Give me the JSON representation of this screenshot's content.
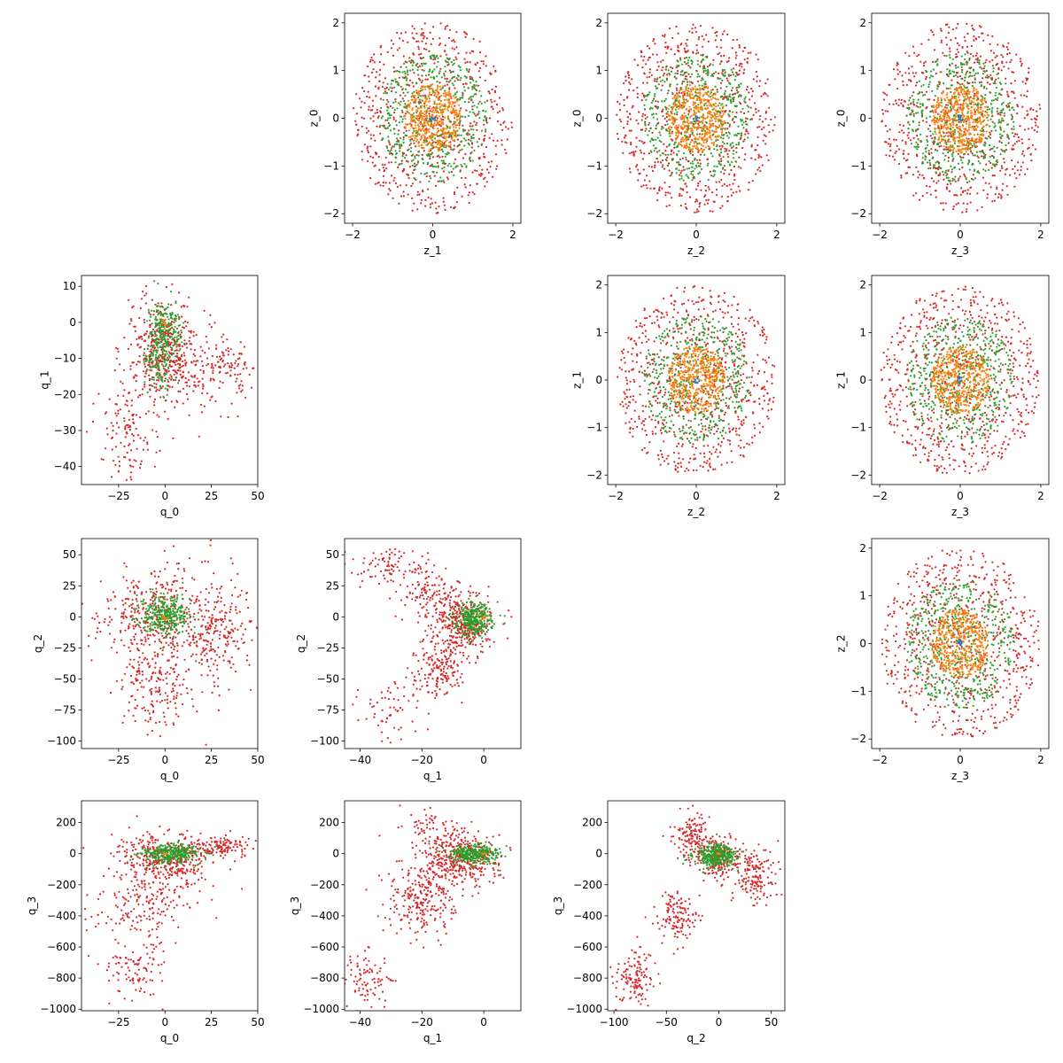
{
  "colors": {
    "level_1": "#1f77b4",
    "level_2": "#ff7f0e",
    "level_3": "#2ca02c",
    "level_4": "#d62728"
  },
  "chart_data": [
    {
      "id": "z0_z1",
      "type": "scatter",
      "xlabel": "z_1",
      "ylabel": "z_0",
      "xlim": [
        -2.2,
        2.2
      ],
      "ylim": [
        -2.2,
        2.2
      ],
      "xticks": [
        -2,
        0,
        2
      ],
      "yticks": [
        -2,
        -1,
        0,
        1,
        2
      ],
      "series": [
        {
          "color": "level_4",
          "dist": "ring",
          "r": [
            0.0,
            2.0
          ],
          "n": 700
        },
        {
          "color": "level_3",
          "dist": "ring",
          "r": [
            0.0,
            1.35
          ],
          "n": 500
        },
        {
          "color": "level_2",
          "dist": "ring",
          "r": [
            0.0,
            0.72
          ],
          "n": 450
        },
        {
          "color": "level_1",
          "dist": "ring",
          "r": [
            0.0,
            0.08
          ],
          "n": 10
        }
      ]
    },
    {
      "id": "z0_z2",
      "type": "scatter",
      "xlabel": "z_2",
      "ylabel": "z_0",
      "xlim": [
        -2.2,
        2.2
      ],
      "ylim": [
        -2.2,
        2.2
      ],
      "xticks": [
        -2,
        0,
        2
      ],
      "yticks": [
        -2,
        -1,
        0,
        1,
        2
      ],
      "series": [
        {
          "color": "level_4",
          "dist": "ring",
          "r": [
            0.0,
            2.0
          ],
          "n": 700
        },
        {
          "color": "level_3",
          "dist": "ring",
          "r": [
            0.0,
            1.35
          ],
          "n": 500
        },
        {
          "color": "level_2",
          "dist": "ring",
          "r": [
            0.0,
            0.72
          ],
          "n": 450
        },
        {
          "color": "level_1",
          "dist": "ring",
          "r": [
            0.0,
            0.08
          ],
          "n": 10
        }
      ]
    },
    {
      "id": "z0_z3",
      "type": "scatter",
      "xlabel": "z_3",
      "ylabel": "z_0",
      "xlim": [
        -2.2,
        2.2
      ],
      "ylim": [
        -2.2,
        2.2
      ],
      "xticks": [
        -2,
        0,
        2
      ],
      "yticks": [
        -2,
        -1,
        0,
        1,
        2
      ],
      "series": [
        {
          "color": "level_4",
          "dist": "ring",
          "r": [
            0.0,
            2.0
          ],
          "n": 700
        },
        {
          "color": "level_3",
          "dist": "ring",
          "r": [
            0.0,
            1.35
          ],
          "n": 500
        },
        {
          "color": "level_2",
          "dist": "ring",
          "r": [
            0.0,
            0.72
          ],
          "n": 450
        },
        {
          "color": "level_1",
          "dist": "ring",
          "r": [
            0.0,
            0.08
          ],
          "n": 10
        }
      ]
    },
    {
      "id": "z1_z2",
      "type": "scatter",
      "xlabel": "z_2",
      "ylabel": "z_1",
      "xlim": [
        -2.2,
        2.2
      ],
      "ylim": [
        -2.2,
        2.2
      ],
      "xticks": [
        -2,
        0,
        2
      ],
      "yticks": [
        -2,
        -1,
        0,
        1,
        2
      ],
      "series": [
        {
          "color": "level_4",
          "dist": "ring",
          "r": [
            0.0,
            2.0
          ],
          "n": 700
        },
        {
          "color": "level_3",
          "dist": "ring",
          "r": [
            0.0,
            1.35
          ],
          "n": 500
        },
        {
          "color": "level_2",
          "dist": "ring",
          "r": [
            0.0,
            0.72
          ],
          "n": 450
        },
        {
          "color": "level_1",
          "dist": "ring",
          "r": [
            0.0,
            0.08
          ],
          "n": 10
        }
      ]
    },
    {
      "id": "z1_z3",
      "type": "scatter",
      "xlabel": "z_3",
      "ylabel": "z_1",
      "xlim": [
        -2.2,
        2.2
      ],
      "ylim": [
        -2.2,
        2.2
      ],
      "xticks": [
        -2,
        0,
        2
      ],
      "yticks": [
        -2,
        -1,
        0,
        1,
        2
      ],
      "series": [
        {
          "color": "level_4",
          "dist": "ring",
          "r": [
            0.0,
            2.0
          ],
          "n": 700
        },
        {
          "color": "level_3",
          "dist": "ring",
          "r": [
            0.0,
            1.35
          ],
          "n": 500
        },
        {
          "color": "level_2",
          "dist": "ring",
          "r": [
            0.0,
            0.72
          ],
          "n": 450
        },
        {
          "color": "level_1",
          "dist": "ring",
          "r": [
            0.0,
            0.08
          ],
          "n": 10
        }
      ]
    },
    {
      "id": "z2_z3",
      "type": "scatter",
      "xlabel": "z_3",
      "ylabel": "z_2",
      "xlim": [
        -2.2,
        2.2
      ],
      "ylim": [
        -2.2,
        2.2
      ],
      "xticks": [
        -2,
        0,
        2
      ],
      "yticks": [
        -2,
        -1,
        0,
        1,
        2
      ],
      "series": [
        {
          "color": "level_4",
          "dist": "ring",
          "r": [
            0.0,
            2.0
          ],
          "n": 700
        },
        {
          "color": "level_3",
          "dist": "ring",
          "r": [
            0.0,
            1.35
          ],
          "n": 500
        },
        {
          "color": "level_2",
          "dist": "ring",
          "r": [
            0.0,
            0.72
          ],
          "n": 450
        },
        {
          "color": "level_1",
          "dist": "ring",
          "r": [
            0.0,
            0.08
          ],
          "n": 10
        }
      ]
    },
    {
      "id": "q1_q0",
      "type": "scatter",
      "xlabel": "q_0",
      "ylabel": "q_1",
      "xlim": [
        -45,
        50
      ],
      "ylim": [
        -45,
        13
      ],
      "xticks": [
        -25,
        0,
        25,
        50
      ],
      "yticks": [
        -40,
        -30,
        -20,
        -10,
        0,
        10
      ],
      "series": [
        {
          "color": "level_4",
          "dist": "clusters",
          "n": 750,
          "clusters": [
            {
              "cx": 0,
              "cy": -6,
              "sx": 9,
              "sy": 6,
              "w": 0.45
            },
            {
              "cx": -20,
              "cy": -28,
              "sx": 8,
              "sy": 8,
              "w": 0.2
            },
            {
              "cx": 35,
              "cy": -12,
              "sx": 7,
              "sy": 4,
              "w": 0.12
            },
            {
              "cx": 10,
              "cy": -15,
              "sx": 14,
              "sy": 6,
              "w": 0.23
            }
          ]
        },
        {
          "color": "level_3",
          "dist": "clusters",
          "n": 320,
          "clusters": [
            {
              "cx": 0,
              "cy": -2,
              "sx": 5,
              "sy": 4,
              "w": 0.7
            },
            {
              "cx": -3,
              "cy": -12,
              "sx": 4,
              "sy": 4,
              "w": 0.3
            }
          ]
        },
        {
          "color": "level_2",
          "dist": "clusters",
          "n": 8,
          "clusters": [
            {
              "cx": 0,
              "cy": 0,
              "sx": 1,
              "sy": 1,
              "w": 1
            }
          ]
        }
      ]
    },
    {
      "id": "q2_q0",
      "type": "scatter",
      "xlabel": "q_0",
      "ylabel": "q_2",
      "xlim": [
        -45,
        50
      ],
      "ylim": [
        -106,
        63
      ],
      "xticks": [
        -25,
        0,
        25,
        50
      ],
      "yticks": [
        -100,
        -75,
        -50,
        -25,
        0,
        25,
        50
      ],
      "series": [
        {
          "color": "level_4",
          "dist": "clusters",
          "n": 800,
          "clusters": [
            {
              "cx": 0,
              "cy": 0,
              "sx": 18,
              "sy": 22,
              "w": 0.6
            },
            {
              "cx": -5,
              "cy": -60,
              "sx": 10,
              "sy": 15,
              "w": 0.2
            },
            {
              "cx": 30,
              "cy": -15,
              "sx": 8,
              "sy": 20,
              "w": 0.2
            }
          ]
        },
        {
          "color": "level_3",
          "dist": "clusters",
          "n": 320,
          "clusters": [
            {
              "cx": 0,
              "cy": 2,
              "sx": 7,
              "sy": 9,
              "w": 1
            }
          ]
        },
        {
          "color": "level_2",
          "dist": "clusters",
          "n": 8,
          "clusters": [
            {
              "cx": 0,
              "cy": 0,
              "sx": 1,
              "sy": 1,
              "w": 1
            }
          ]
        }
      ]
    },
    {
      "id": "q2_q1",
      "type": "scatter",
      "xlabel": "q_1",
      "ylabel": "q_2",
      "xlim": [
        -45,
        12
      ],
      "ylim": [
        -106,
        63
      ],
      "xticks": [
        -40,
        -20,
        0
      ],
      "yticks": [
        -100,
        -75,
        -50,
        -25,
        0,
        25,
        50
      ],
      "series": [
        {
          "color": "level_4",
          "dist": "clusters",
          "n": 800,
          "clusters": [
            {
              "cx": -7,
              "cy": -5,
              "sx": 5,
              "sy": 12,
              "w": 0.45
            },
            {
              "cx": -15,
              "cy": -40,
              "sx": 4,
              "sy": 12,
              "w": 0.2
            },
            {
              "cx": -30,
              "cy": -75,
              "sx": 6,
              "sy": 12,
              "w": 0.1
            },
            {
              "cx": -30,
              "cy": 40,
              "sx": 6,
              "sy": 8,
              "w": 0.1
            },
            {
              "cx": -18,
              "cy": 20,
              "sx": 5,
              "sy": 10,
              "w": 0.15
            }
          ]
        },
        {
          "color": "level_3",
          "dist": "clusters",
          "n": 300,
          "clusters": [
            {
              "cx": -3,
              "cy": -2,
              "sx": 3,
              "sy": 7,
              "w": 1
            }
          ]
        },
        {
          "color": "level_2",
          "dist": "clusters",
          "n": 8,
          "clusters": [
            {
              "cx": 0,
              "cy": 0,
              "sx": 1,
              "sy": 1,
              "w": 1
            }
          ]
        }
      ]
    },
    {
      "id": "q3_q0",
      "type": "scatter",
      "xlabel": "q_0",
      "ylabel": "q_3",
      "xlim": [
        -45,
        50
      ],
      "ylim": [
        -1010,
        340
      ],
      "xticks": [
        -25,
        0,
        25,
        50
      ],
      "yticks": [
        -1000,
        -800,
        -600,
        -400,
        -200,
        0,
        200
      ],
      "series": [
        {
          "color": "level_4",
          "dist": "clusters",
          "n": 800,
          "clusters": [
            {
              "cx": 0,
              "cy": -30,
              "sx": 12,
              "sy": 80,
              "w": 0.5
            },
            {
              "cx": 30,
              "cy": 40,
              "sx": 8,
              "sy": 40,
              "w": 0.15
            },
            {
              "cx": -10,
              "cy": -300,
              "sx": 15,
              "sy": 120,
              "w": 0.25
            },
            {
              "cx": -15,
              "cy": -750,
              "sx": 8,
              "sy": 100,
              "w": 0.1
            }
          ]
        },
        {
          "color": "level_3",
          "dist": "clusters",
          "n": 300,
          "clusters": [
            {
              "cx": 3,
              "cy": 0,
              "sx": 8,
              "sy": 30,
              "w": 1
            }
          ]
        },
        {
          "color": "level_2",
          "dist": "clusters",
          "n": 8,
          "clusters": [
            {
              "cx": 0,
              "cy": 0,
              "sx": 1,
              "sy": 1,
              "w": 1
            }
          ]
        }
      ]
    },
    {
      "id": "q3_q1",
      "type": "scatter",
      "xlabel": "q_1",
      "ylabel": "q_3",
      "xlim": [
        -45,
        12
      ],
      "ylim": [
        -1010,
        340
      ],
      "xticks": [
        -40,
        -20,
        0
      ],
      "yticks": [
        -1000,
        -800,
        -600,
        -400,
        -200,
        0,
        200
      ],
      "series": [
        {
          "color": "level_4",
          "dist": "clusters",
          "n": 800,
          "clusters": [
            {
              "cx": -8,
              "cy": -40,
              "sx": 6,
              "sy": 80,
              "w": 0.5
            },
            {
              "cx": -20,
              "cy": -300,
              "sx": 6,
              "sy": 120,
              "w": 0.3
            },
            {
              "cx": -38,
              "cy": -800,
              "sx": 4,
              "sy": 90,
              "w": 0.1
            },
            {
              "cx": -15,
              "cy": 150,
              "sx": 6,
              "sy": 60,
              "w": 0.1
            }
          ]
        },
        {
          "color": "level_3",
          "dist": "clusters",
          "n": 300,
          "clusters": [
            {
              "cx": -3,
              "cy": 0,
              "sx": 4,
              "sy": 30,
              "w": 1
            }
          ]
        },
        {
          "color": "level_2",
          "dist": "clusters",
          "n": 8,
          "clusters": [
            {
              "cx": 0,
              "cy": 0,
              "sx": 1,
              "sy": 1,
              "w": 1
            }
          ]
        }
      ]
    },
    {
      "id": "q3_q2",
      "type": "scatter",
      "xlabel": "q_2",
      "ylabel": "q_3",
      "xlim": [
        -106,
        63
      ],
      "ylim": [
        -1010,
        340
      ],
      "xticks": [
        -100,
        -50,
        0,
        50
      ],
      "yticks": [
        -1000,
        -800,
        -600,
        -400,
        -200,
        0,
        200
      ],
      "series": [
        {
          "color": "level_4",
          "dist": "clusters",
          "n": 800,
          "clusters": [
            {
              "cx": 0,
              "cy": -20,
              "sx": 10,
              "sy": 60,
              "w": 0.35
            },
            {
              "cx": -25,
              "cy": 100,
              "sx": 8,
              "sy": 80,
              "w": 0.15
            },
            {
              "cx": 35,
              "cy": -150,
              "sx": 10,
              "sy": 90,
              "w": 0.2
            },
            {
              "cx": -40,
              "cy": -400,
              "sx": 10,
              "sy": 80,
              "w": 0.15
            },
            {
              "cx": -80,
              "cy": -800,
              "sx": 10,
              "sy": 90,
              "w": 0.15
            }
          ]
        },
        {
          "color": "level_3",
          "dist": "clusters",
          "n": 300,
          "clusters": [
            {
              "cx": -2,
              "cy": -10,
              "sx": 10,
              "sy": 40,
              "w": 1
            }
          ]
        },
        {
          "color": "level_2",
          "dist": "clusters",
          "n": 8,
          "clusters": [
            {
              "cx": 0,
              "cy": 0,
              "sx": 1,
              "sy": 1,
              "w": 1
            }
          ]
        }
      ]
    }
  ]
}
